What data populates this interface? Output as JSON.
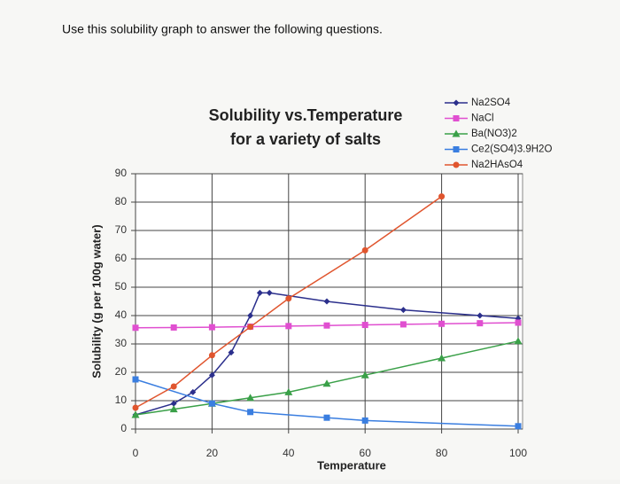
{
  "instruction": "Use this solubility graph to answer the following questions.",
  "chart_data": {
    "type": "line",
    "title": "Solubility vs.Temperature",
    "subtitle": "for a variety of salts",
    "x_label": "Temperature",
    "y_label": "Solubility (g per 100g water)",
    "xlim": [
      0,
      100
    ],
    "xticks": [
      0,
      20,
      40,
      60,
      80,
      100
    ],
    "ylim": [
      0,
      90
    ],
    "yticks": [
      0,
      10,
      20,
      30,
      40,
      50,
      60,
      70,
      80,
      90
    ],
    "grid": true,
    "legend": "top-right",
    "series": [
      {
        "name": "Na2SO4",
        "color": "#2b2f8c",
        "marker": "diamond",
        "x": [
          0,
          10,
          15,
          20,
          25,
          30,
          32.5,
          35,
          50,
          70,
          90,
          100
        ],
        "values": [
          5,
          9,
          13,
          19,
          27,
          40,
          48,
          48,
          45,
          42,
          40,
          39
        ]
      },
      {
        "name": "NaCl",
        "color": "#e04fd0",
        "marker": "square",
        "x": [
          0,
          10,
          20,
          30,
          40,
          50,
          60,
          70,
          80,
          90,
          100
        ],
        "values": [
          35.7,
          35.8,
          35.9,
          36.1,
          36.3,
          36.5,
          36.7,
          36.9,
          37.1,
          37.3,
          37.5
        ]
      },
      {
        "name": "Ba(NO3)2",
        "color": "#3aa048",
        "marker": "triangle",
        "x": [
          0,
          10,
          20,
          30,
          40,
          50,
          60,
          80,
          100
        ],
        "values": [
          5,
          7,
          9,
          11,
          13,
          16,
          19,
          25,
          31
        ]
      },
      {
        "name": "Ce2(SO4)3.9H2O",
        "color": "#3a7ee0",
        "marker": "square",
        "x": [
          0,
          20,
          30,
          50,
          60,
          100
        ],
        "values": [
          17.5,
          9,
          6,
          4,
          3,
          1
        ]
      },
      {
        "name": "Na2HAsO4",
        "color": "#e0552e",
        "marker": "circle",
        "x": [
          0,
          10,
          20,
          30,
          40,
          60,
          80
        ],
        "values": [
          7.5,
          15,
          26,
          36,
          46,
          63,
          82
        ]
      }
    ]
  }
}
